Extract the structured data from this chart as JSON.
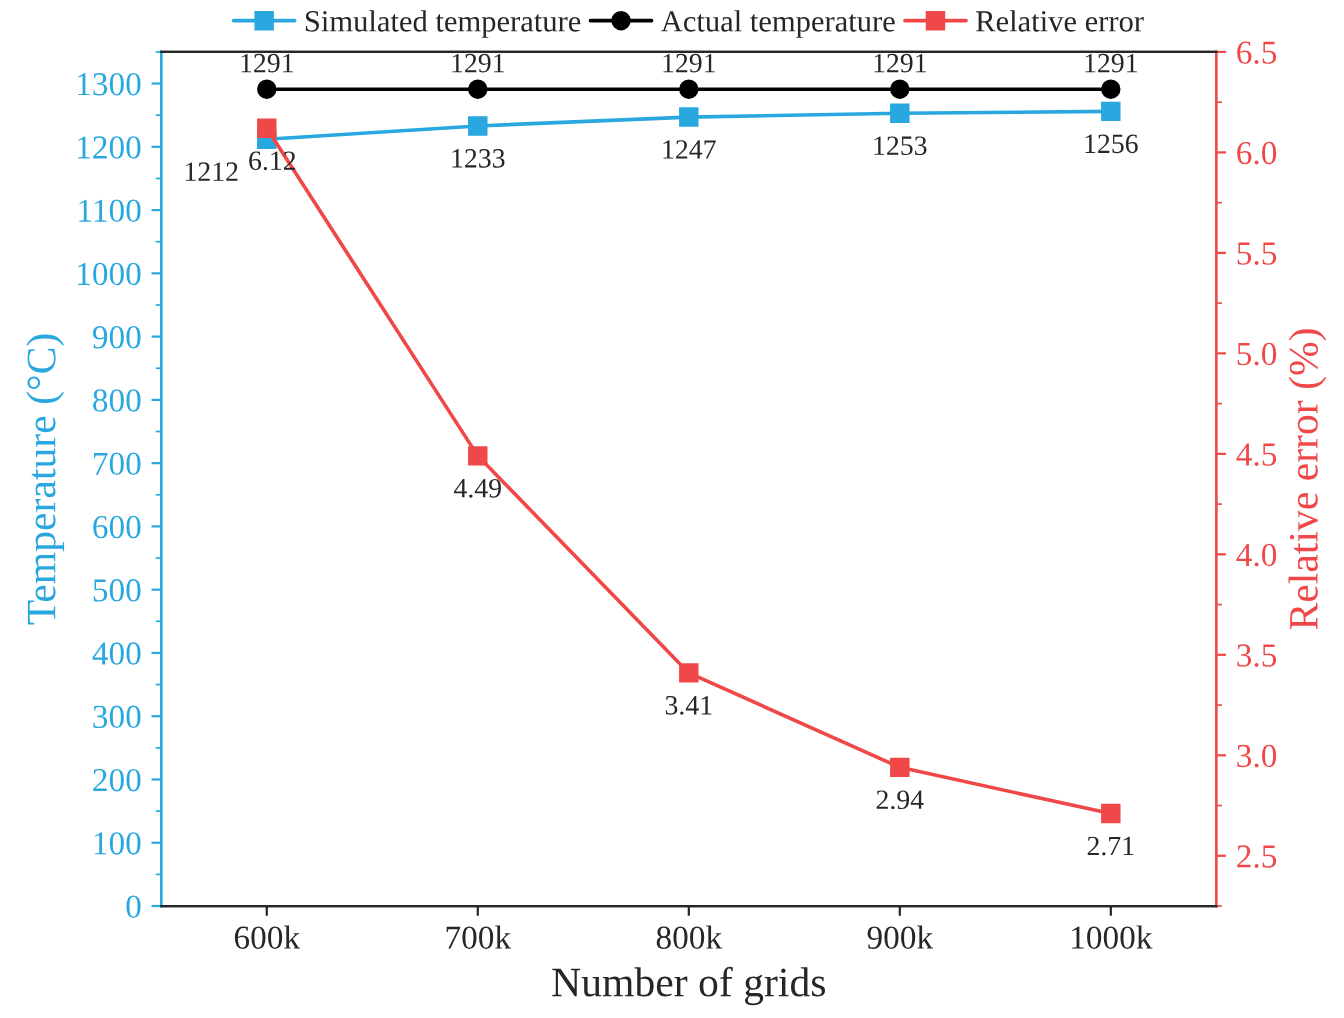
{
  "chart_data": {
    "type": "line",
    "xlabel": "Number of grids",
    "ylabel": "Temperature (°C)",
    "y2label": "Relative error (%)",
    "categories": [
      "600k",
      "700k",
      "800k",
      "900k",
      "1000k"
    ],
    "series": [
      {
        "name": "Simulated temperature",
        "color": "#29a8e0",
        "values": [
          1212,
          1233,
          1247,
          1253,
          1256
        ],
        "marker": "square"
      },
      {
        "name": "Actual temperature",
        "color": "#000000",
        "values": [
          1291,
          1291,
          1291,
          1291,
          1291
        ],
        "marker": "circle"
      },
      {
        "name": "Relative error",
        "color": "#f04848",
        "values": [
          6.12,
          4.49,
          3.41,
          2.94,
          2.71
        ],
        "marker": "square",
        "axis": "y2"
      }
    ],
    "ylim": [
      0,
      1350
    ],
    "yticks": [
      0,
      100,
      200,
      300,
      400,
      500,
      600,
      700,
      800,
      900,
      1000,
      1100,
      1200,
      1300
    ],
    "y2lim": [
      2.25,
      6.5
    ],
    "y2ticks": [
      {
        "value": 2.5,
        "label": "2.5"
      },
      {
        "value": 3.0,
        "label": "3.0"
      },
      {
        "value": 3.5,
        "label": "3.5"
      },
      {
        "value": 4.0,
        "label": "4.0"
      },
      {
        "value": 4.5,
        "label": "4.5"
      },
      {
        "value": 5.0,
        "label": "5.0"
      },
      {
        "value": 5.5,
        "label": "5.5"
      },
      {
        "value": 6.0,
        "label": "6.0"
      },
      {
        "value": 6.5,
        "label": "6.5"
      }
    ],
    "data_labels": true,
    "legend": "top",
    "grid": false,
    "line_style": "solid"
  }
}
